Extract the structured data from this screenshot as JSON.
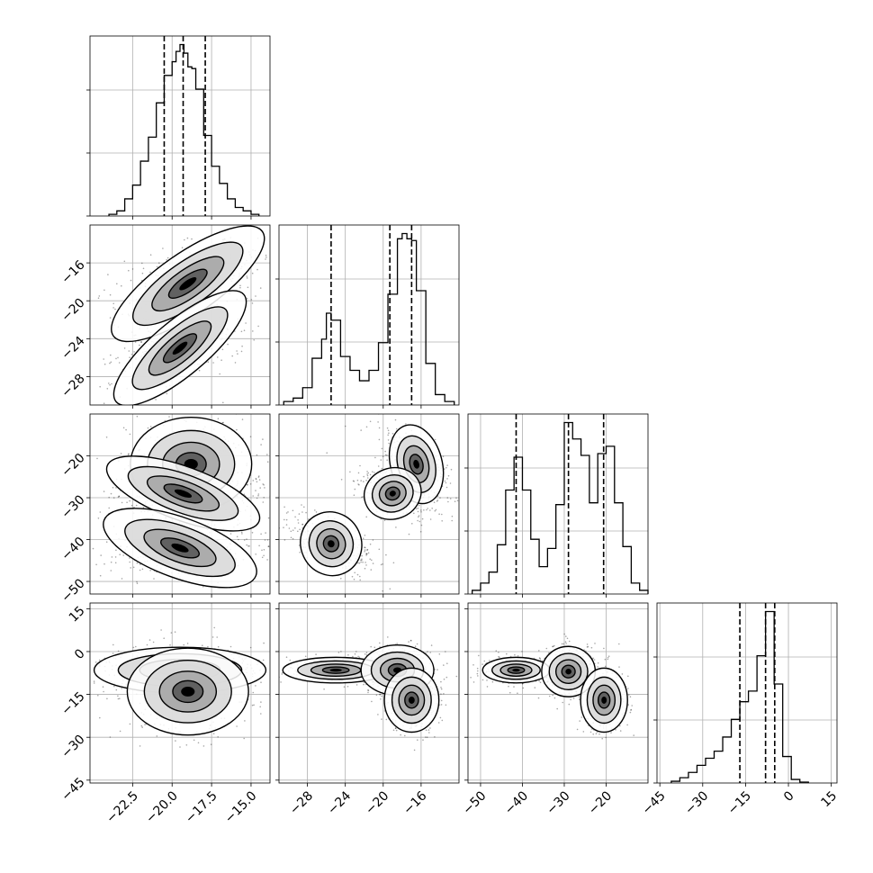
{
  "chart_data": {
    "type": "corner",
    "grid": true,
    "parameters": [
      {
        "range": [
          -25.2,
          -13.8
        ],
        "ticks": [
          -22.5,
          -20.0,
          -17.5,
          -15.0
        ],
        "tick_labels": [
          "−22.5",
          "−20.0",
          "−17.5",
          "−15.0"
        ],
        "quantiles": [
          -20.5,
          -19.3,
          -17.9
        ],
        "histogram": {
          "edges": [
            -24.0,
            -23.5,
            -23.0,
            -22.5,
            -22.0,
            -21.5,
            -21.0,
            -20.5,
            -20.0,
            -19.75,
            -19.5,
            -19.25,
            -19.0,
            -18.75,
            -18.5,
            -18.0,
            -17.5,
            -17.0,
            -16.5,
            -16.0,
            -15.5,
            -15.0,
            -14.5
          ],
          "counts": [
            0.01,
            0.03,
            0.1,
            0.18,
            0.32,
            0.46,
            0.66,
            0.82,
            0.9,
            0.96,
            1.0,
            0.95,
            0.87,
            0.86,
            0.74,
            0.47,
            0.29,
            0.19,
            0.1,
            0.05,
            0.03,
            0.01
          ]
        }
      },
      {
        "range": [
          -31.0,
          -12.0
        ],
        "ticks": [
          -28,
          -24,
          -20,
          -16
        ],
        "tick_labels": [
          "−28",
          "−24",
          "−20",
          "−16"
        ],
        "quantiles": [
          -25.5,
          -19.3,
          -17.0
        ],
        "histogram": {
          "edges": [
            -30.5,
            -29.5,
            -28.5,
            -27.5,
            -26.5,
            -26.0,
            -25.5,
            -24.5,
            -23.5,
            -22.5,
            -21.5,
            -20.5,
            -19.5,
            -18.5,
            -18.0,
            -17.5,
            -17.0,
            -16.5,
            -15.5,
            -14.5,
            -13.5,
            -12.5
          ],
          "counts": [
            0.02,
            0.04,
            0.1,
            0.27,
            0.38,
            0.53,
            0.49,
            0.28,
            0.2,
            0.14,
            0.2,
            0.36,
            0.64,
            0.96,
            0.99,
            0.96,
            0.95,
            0.66,
            0.24,
            0.06,
            0.02
          ]
        }
      },
      {
        "range": [
          -53.0,
          -10.0
        ],
        "ticks": [
          -50,
          -40,
          -30,
          -20
        ],
        "tick_labels": [
          "−50",
          "−40",
          "−30",
          "−20"
        ],
        "quantiles": [
          -41.5,
          -29.0,
          -20.6
        ],
        "histogram": {
          "edges": [
            -52,
            -50,
            -48,
            -46,
            -44,
            -42,
            -40,
            -38,
            -36,
            -34,
            -32,
            -30,
            -28,
            -26,
            -24,
            -22,
            -20,
            -18,
            -16,
            -14,
            -12,
            -10
          ],
          "counts": [
            0.02,
            0.06,
            0.12,
            0.27,
            0.57,
            0.75,
            0.57,
            0.3,
            0.15,
            0.25,
            0.49,
            0.94,
            0.85,
            0.76,
            0.5,
            0.77,
            0.81,
            0.5,
            0.26,
            0.06,
            0.02
          ]
        }
      },
      {
        "range": [
          -46.0,
          17.0
        ],
        "ticks": [
          -45,
          -30,
          -15,
          0,
          15
        ],
        "tick_labels": [
          "−45",
          "−30",
          "−15",
          "0",
          "15"
        ],
        "quantiles": [
          -17.0,
          -8.0,
          -4.8
        ],
        "histogram": {
          "edges": [
            -41,
            -38,
            -35,
            -32,
            -29,
            -26,
            -23,
            -20,
            -17,
            -14,
            -11,
            -8,
            -5,
            -2,
            1,
            4,
            7
          ],
          "counts": [
            0.01,
            0.03,
            0.06,
            0.1,
            0.14,
            0.18,
            0.26,
            0.36,
            0.46,
            0.52,
            0.72,
            0.97,
            0.56,
            0.15,
            0.02,
            0.005
          ]
        }
      }
    ],
    "pairs": [
      {
        "row": 1,
        "col": 0,
        "ellipses": [
          {
            "cx": -19.0,
            "cy": -18.2,
            "rx": 3.6,
            "ry": 2.0,
            "rot": 35
          },
          {
            "cx": -19.5,
            "cy": -25.0,
            "rx": 3.3,
            "ry": 1.8,
            "rot": 40
          }
        ]
      },
      {
        "row": 2,
        "col": 0,
        "ellipses": [
          {
            "cx": -18.8,
            "cy": -22.0,
            "rx": 2.4,
            "ry": 7.0,
            "rot": 0
          },
          {
            "cx": -19.3,
            "cy": -29.0,
            "rx": 3.2,
            "ry": 4.0,
            "rot": -20
          },
          {
            "cx": -19.5,
            "cy": -42.0,
            "rx": 3.2,
            "ry": 4.5,
            "rot": -20
          }
        ]
      },
      {
        "row": 2,
        "col": 1,
        "ellipses": [
          {
            "cx": -16.5,
            "cy": -22.0,
            "rx": 1.7,
            "ry": 6.0,
            "rot": 15
          },
          {
            "cx": -19.0,
            "cy": -29.0,
            "rx": 1.9,
            "ry": 3.8,
            "rot": 20
          },
          {
            "cx": -25.5,
            "cy": -41.0,
            "rx": 2.0,
            "ry": 4.8,
            "rot": 25
          }
        ]
      },
      {
        "row": 3,
        "col": 0,
        "ellipses": [
          {
            "cx": -19.5,
            "cy": -6.5,
            "rx": 3.4,
            "ry": 5.0,
            "rot": 0
          },
          {
            "cx": -19.0,
            "cy": -14.0,
            "rx": 2.4,
            "ry": 9.5,
            "rot": 0
          }
        ]
      },
      {
        "row": 3,
        "col": 1,
        "ellipses": [
          {
            "cx": -25.0,
            "cy": -6.5,
            "rx": 3.5,
            "ry": 2.8,
            "rot": 0
          },
          {
            "cx": -18.5,
            "cy": -6.5,
            "rx": 2.4,
            "ry": 5.5,
            "rot": 0
          },
          {
            "cx": -17.0,
            "cy": -17.0,
            "rx": 1.8,
            "ry": 7.0,
            "rot": 0
          }
        ]
      },
      {
        "row": 3,
        "col": 2,
        "ellipses": [
          {
            "cx": -41.5,
            "cy": -6.5,
            "rx": 5.0,
            "ry": 2.8,
            "rot": 0
          },
          {
            "cx": -29.0,
            "cy": -7.0,
            "rx": 4.0,
            "ry": 5.5,
            "rot": 0
          },
          {
            "cx": -20.5,
            "cy": -17.0,
            "rx": 3.5,
            "ry": 7.0,
            "rot": 0
          }
        ]
      }
    ]
  }
}
